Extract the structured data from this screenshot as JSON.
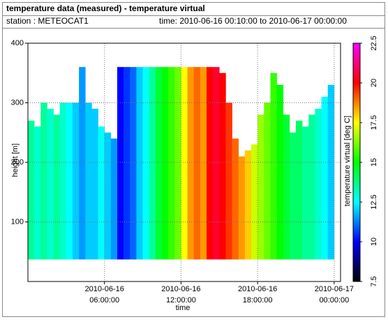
{
  "chart_data": {
    "type": "heatmap",
    "title": "temperature data (measured) - temperature virtual",
    "station": "station : METEOCAT1",
    "period": "time: 2010-06-16 00:10:00 to 2010-06-17 00:00:00",
    "x_label": "time",
    "y_label": "height [m]",
    "colorbar_label": "temperature virtual [deg C]",
    "xlim": [
      "2010-06-16 00:00:00",
      "2010-06-17 00:30:00"
    ],
    "xticks": [
      {
        "value": "2010-06-16 06:00:00",
        "label": [
          "2010-06-16",
          "06:00:00"
        ]
      },
      {
        "value": "2010-06-16 12:00:00",
        "label": [
          "2010-06-16",
          "12:00:00"
        ]
      },
      {
        "value": "2010-06-16 18:00:00",
        "label": [
          "2010-06-16",
          "18:00:00"
        ]
      },
      {
        "value": "2010-06-17 00:00:00",
        "label": [
          "2010-06-17",
          "00:00:00"
        ]
      }
    ],
    "ylim": [
      0,
      400
    ],
    "yticks": [
      100,
      200,
      300,
      400
    ],
    "clim": [
      7.5,
      22.5
    ],
    "cticks": [
      7.5,
      10,
      12.5,
      15,
      17.5,
      20,
      22.5
    ],
    "colormap": [
      "#000000",
      "#0000ff",
      "#00ffff",
      "#00ff00",
      "#ffff00",
      "#ff0000",
      "#ff00ff"
    ],
    "grid": true,
    "base": 37,
    "x": [
      "2010-06-16 00:30:00",
      "2010-06-16 01:00:00",
      "2010-06-16 01:30:00",
      "2010-06-16 02:00:00",
      "2010-06-16 02:30:00",
      "2010-06-16 03:00:00",
      "2010-06-16 03:30:00",
      "2010-06-16 04:00:00",
      "2010-06-16 04:30:00",
      "2010-06-16 05:00:00",
      "2010-06-16 05:30:00",
      "2010-06-16 06:00:00",
      "2010-06-16 06:30:00",
      "2010-06-16 07:00:00",
      "2010-06-16 07:30:00",
      "2010-06-16 08:00:00",
      "2010-06-16 08:30:00",
      "2010-06-16 09:00:00",
      "2010-06-16 09:30:00",
      "2010-06-16 10:00:00",
      "2010-06-16 10:30:00",
      "2010-06-16 11:00:00",
      "2010-06-16 11:30:00",
      "2010-06-16 12:00:00",
      "2010-06-16 12:30:00",
      "2010-06-16 13:00:00",
      "2010-06-16 13:30:00",
      "2010-06-16 14:00:00",
      "2010-06-16 14:30:00",
      "2010-06-16 15:00:00",
      "2010-06-16 15:30:00",
      "2010-06-16 16:00:00",
      "2010-06-16 16:30:00",
      "2010-06-16 17:00:00",
      "2010-06-16 17:30:00",
      "2010-06-16 18:00:00",
      "2010-06-16 18:30:00",
      "2010-06-16 19:00:00",
      "2010-06-16 19:30:00",
      "2010-06-16 20:00:00",
      "2010-06-16 20:30:00",
      "2010-06-16 21:00:00",
      "2010-06-16 21:30:00",
      "2010-06-16 22:00:00",
      "2010-06-16 22:30:00",
      "2010-06-16 23:00:00",
      "2010-06-16 23:30:00",
      "2010-06-17 00:00:00"
    ],
    "tops": [
      270,
      260,
      300,
      290,
      280,
      300,
      300,
      300,
      360,
      300,
      290,
      260,
      250,
      240,
      360,
      360,
      360,
      360,
      360,
      360,
      360,
      360,
      360,
      360,
      360,
      360,
      360,
      360,
      360,
      360,
      350,
      300,
      240,
      210,
      220,
      230,
      280,
      300,
      350,
      330,
      280,
      250,
      270,
      260,
      280,
      290,
      310,
      330
    ],
    "values": [
      13.5,
      13,
      13.5,
      13,
      13.5,
      13,
      12.5,
      12,
      11.5,
      12,
      12,
      12.5,
      12,
      11.5,
      10,
      10.5,
      11,
      12,
      12.5,
      13.5,
      14.5,
      15,
      15.5,
      16,
      17.5,
      18.5,
      19,
      18.5,
      20,
      20.5,
      20,
      19.5,
      19,
      18.5,
      18,
      17,
      16.5,
      16,
      15.5,
      15,
      14.5,
      14,
      14,
      13.5,
      13.5,
      13,
      12.5,
      12
    ]
  }
}
